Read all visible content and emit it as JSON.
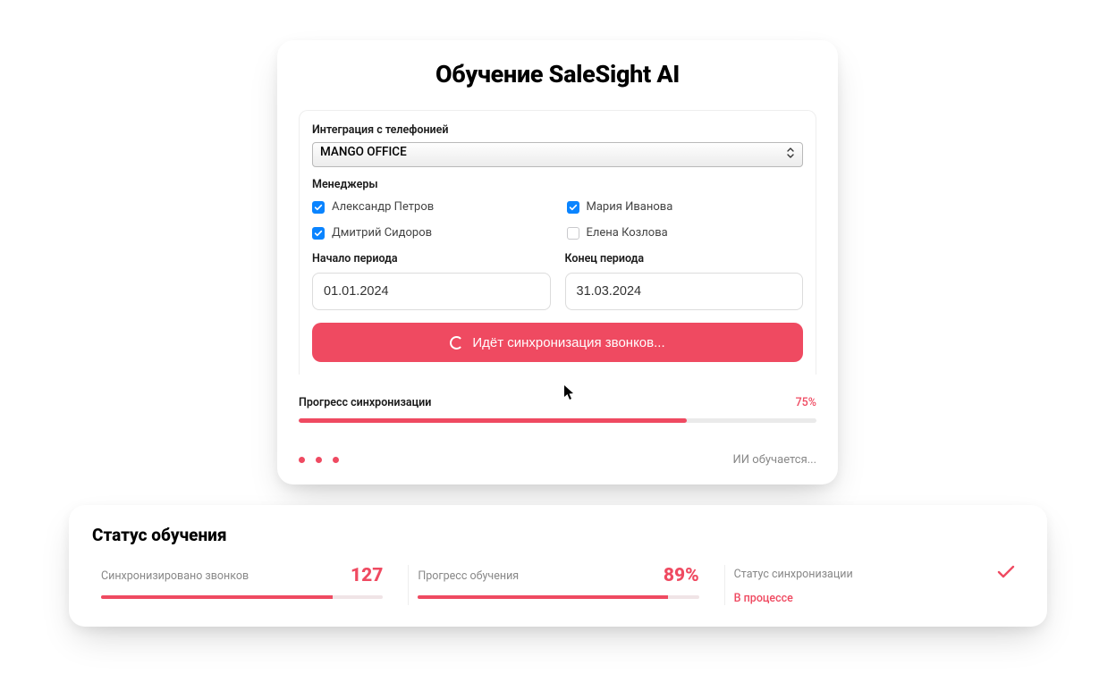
{
  "colors": {
    "accent": "#ef4a61",
    "checkbox_checked": "#0a84ff",
    "text_muted": "#888888",
    "bar_bg": "#eaeaea"
  },
  "training": {
    "title": "Обучение SaleSight AI",
    "integration_label": "Интеграция с телефонией",
    "integration_selected": "MANGO OFFICE",
    "managers_label": "Менеджеры",
    "managers": [
      {
        "name": "Александр Петров",
        "checked": true
      },
      {
        "name": "Мария Иванова",
        "checked": true
      },
      {
        "name": "Дмитрий Сидоров",
        "checked": true
      },
      {
        "name": "Елена Козлова",
        "checked": false
      }
    ],
    "period_start_label": "Начало периода",
    "period_end_label": "Конец периода",
    "period_start": "01.01.2024",
    "period_end": "31.03.2024",
    "sync_button": "Идёт синхронизация звонков...",
    "progress_label": "Прогресс синхронизации",
    "progress_pct": 75,
    "progress_pct_label": "75%",
    "ai_status": "ИИ обучается..."
  },
  "status": {
    "title": "Статус обучения",
    "calls_label": "Синхронизировано звонков",
    "calls_value": "127",
    "calls_bar_pct": 82,
    "train_label": "Прогресс обучения",
    "train_value": "89%",
    "train_bar_pct": 89,
    "sync_status_label": "Статус синхронизации",
    "sync_status_value": "В процессе"
  }
}
